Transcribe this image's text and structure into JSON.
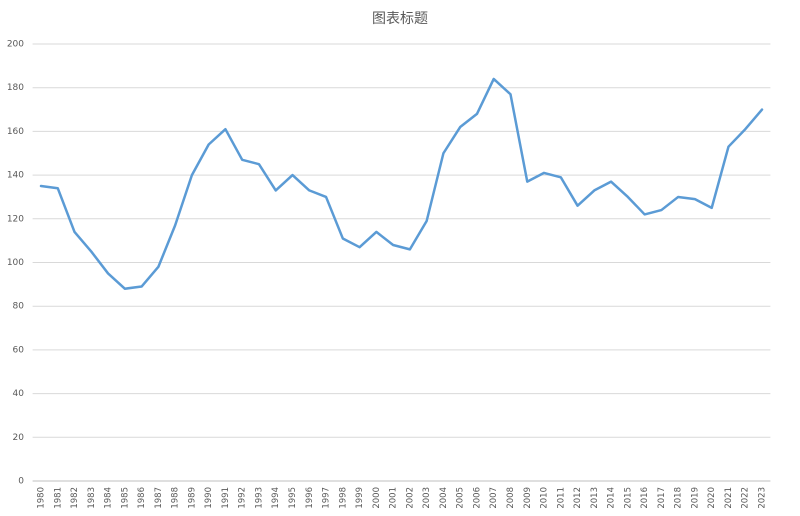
{
  "chart_data": {
    "type": "line",
    "title": "图表标题",
    "categories": [
      "1980",
      "1981",
      "1982",
      "1983",
      "1984",
      "1985",
      "1986",
      "1987",
      "1988",
      "1989",
      "1990",
      "1991",
      "1992",
      "1993",
      "1994",
      "1995",
      "1996",
      "1997",
      "1998",
      "1999",
      "2000",
      "2001",
      "2002",
      "2003",
      "2004",
      "2005",
      "2006",
      "2007",
      "2008",
      "2009",
      "2010",
      "2011",
      "2012",
      "2013",
      "2014",
      "2015",
      "2016",
      "2017",
      "2018",
      "2019",
      "2020",
      "2021",
      "2022",
      "2023"
    ],
    "values": [
      135,
      134,
      114,
      105,
      95,
      88,
      89,
      98,
      117,
      140,
      154,
      161,
      147,
      145,
      133,
      140,
      133,
      130,
      111,
      107,
      114,
      108,
      106,
      119,
      150,
      162,
      168,
      184,
      177,
      137,
      141,
      139,
      126,
      133,
      137,
      130,
      122,
      124,
      130,
      129,
      125,
      153,
      161,
      170
    ],
    "color": "#5b9bd5",
    "ylim": [
      0,
      200
    ],
    "yticks": [
      0,
      20,
      40,
      60,
      80,
      100,
      120,
      140,
      160,
      180,
      200
    ],
    "grid": true
  }
}
